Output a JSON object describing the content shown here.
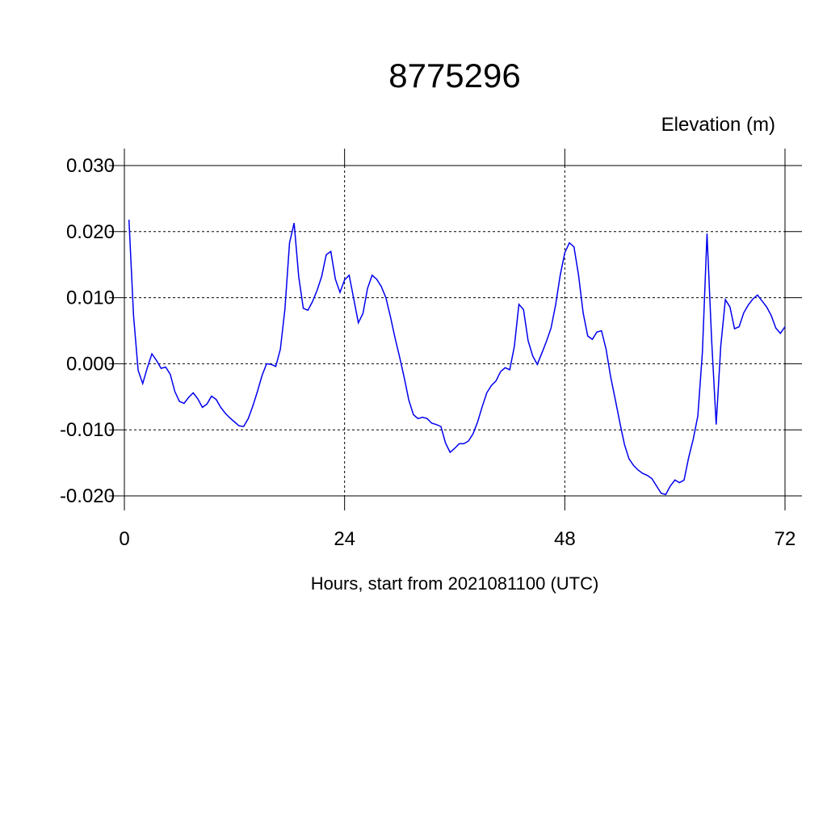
{
  "chart_data": {
    "type": "line",
    "title": "8775296",
    "subtitle": "Elevation (m)",
    "x_label": "Hours, start from 2021081100 (UTC)",
    "x": [
      0.5,
      1,
      1.5,
      2,
      2.5,
      3,
      3.5,
      4,
      4.5,
      5,
      5.5,
      6,
      6.5,
      7,
      7.5,
      8,
      8.5,
      9,
      9.5,
      10,
      10.5,
      11,
      11.5,
      12,
      12.5,
      13,
      13.5,
      14,
      14.5,
      15,
      15.5,
      16,
      16.5,
      17,
      17.5,
      18,
      18.5,
      19,
      19.5,
      20,
      20.5,
      21,
      21.5,
      22,
      22.5,
      23,
      23.5,
      24,
      24.5,
      25,
      25.5,
      26,
      26.5,
      27,
      27.5,
      28,
      28.5,
      29,
      29.5,
      30,
      30.5,
      31,
      31.5,
      32,
      32.5,
      33,
      33.5,
      34,
      34.5,
      35,
      35.5,
      36,
      36.5,
      37,
      37.5,
      38,
      38.5,
      39,
      39.5,
      40,
      40.5,
      41,
      41.5,
      42,
      42.5,
      43,
      43.5,
      44,
      44.5,
      45,
      45.5,
      46,
      46.5,
      47,
      47.5,
      48,
      48.5,
      49,
      49.5,
      50,
      50.5,
      51,
      51.5,
      52,
      52.5,
      53,
      53.5,
      54,
      54.5,
      55,
      55.5,
      56,
      56.5,
      57,
      57.5,
      58,
      58.5,
      59,
      59.5,
      60,
      60.5,
      61,
      61.5,
      62,
      62.5,
      63,
      63.5,
      64,
      64.5,
      65,
      65.5,
      66,
      66.5,
      67,
      67.5,
      68,
      68.5,
      69,
      69.5,
      70,
      70.5,
      71,
      71.5,
      72
    ],
    "series": [
      {
        "color": "#0000ee",
        "values": [
          0.0218,
          0.0073,
          -0.001,
          -0.003,
          -0.0006,
          0.0015,
          0.0005,
          -0.0007,
          -0.0005,
          -0.0016,
          -0.0042,
          -0.0057,
          -0.006,
          -0.0051,
          -0.0044,
          -0.0053,
          -0.0066,
          -0.0061,
          -0.0049,
          -0.0054,
          -0.0066,
          -0.0075,
          -0.0082,
          -0.0088,
          -0.0094,
          -0.0095,
          -0.0083,
          -0.0064,
          -0.0042,
          -0.0018,
          0,
          -0.0001,
          -0.0004,
          0.0022,
          0.0083,
          0.0183,
          0.0213,
          0.0132,
          0.0084,
          0.0081,
          0.0094,
          0.0111,
          0.0132,
          0.0165,
          0.017,
          0.0128,
          0.0108,
          0.0127,
          0.0134,
          0.0098,
          0.0062,
          0.0076,
          0.0114,
          0.0134,
          0.0128,
          0.0117,
          0.01,
          0.0071,
          0.0039,
          0.001,
          -0.0021,
          -0.0055,
          -0.0077,
          -0.0083,
          -0.0081,
          -0.0083,
          -0.009,
          -0.0092,
          -0.0095,
          -0.012,
          -0.0134,
          -0.0128,
          -0.0121,
          -0.0121,
          -0.0117,
          -0.0106,
          -0.0088,
          -0.0065,
          -0.0044,
          -0.0033,
          -0.0026,
          -0.0012,
          -0.0006,
          -0.0009,
          0.0026,
          0.009,
          0.0082,
          0.0035,
          0.0012,
          -0.0001,
          0.0016,
          0.0034,
          0.0054,
          0.0089,
          0.0134,
          0.0168,
          0.0183,
          0.0177,
          0.0134,
          0.0077,
          0.0042,
          0.0037,
          0.0048,
          0.005,
          0.0022,
          -0.002,
          -0.0054,
          -0.0089,
          -0.0122,
          -0.0144,
          -0.0154,
          -0.0161,
          -0.0166,
          -0.0169,
          -0.0174,
          -0.0185,
          -0.0196,
          -0.0198,
          -0.0185,
          -0.0176,
          -0.018,
          -0.0176,
          -0.0142,
          -0.0114,
          -0.0079,
          0.0018,
          0.0197,
          0.0037,
          -0.0092,
          0.0027,
          0.0097,
          0.0086,
          0.0053,
          0.0056,
          0.0077,
          0.0089,
          0.0098,
          0.0104,
          0.0095,
          0.0086,
          0.0073,
          0.0054,
          0.0046,
          0.0056
        ]
      }
    ],
    "xlim": [
      0,
      72
    ],
    "xticks": [
      0,
      24,
      48,
      72
    ],
    "ylim": [
      -0.02,
      0.03
    ],
    "yticks": [
      {
        "value": -0.02,
        "label": "-0.020"
      },
      {
        "value": -0.01,
        "label": "-0.010"
      },
      {
        "value": 0,
        "label": "0.000"
      },
      {
        "value": 0.01,
        "label": "0.010"
      },
      {
        "value": 0.02,
        "label": "0.020"
      },
      {
        "value": 0.03,
        "label": "0.030"
      }
    ],
    "grid": true
  }
}
